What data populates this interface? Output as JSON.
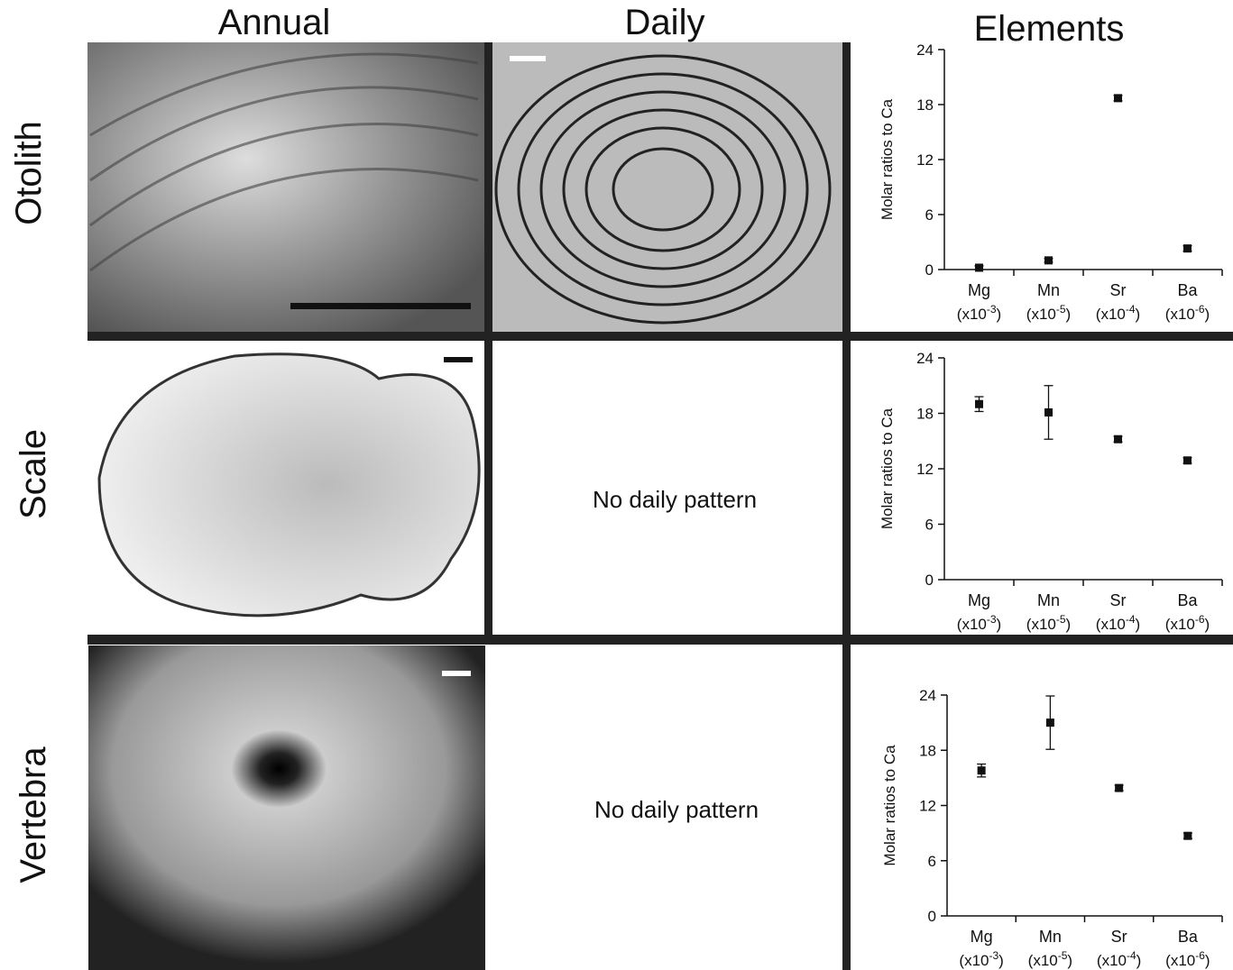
{
  "header": {
    "columns": [
      "Annual",
      "Daily",
      "Elements"
    ],
    "rows": [
      "Otolith",
      "Scale",
      "Vertebra"
    ]
  },
  "daily": {
    "scale": "No daily pattern",
    "vertebra": "No daily pattern"
  },
  "chart_data": [
    {
      "type": "scatter",
      "ylabel": "Molar ratios to Ca",
      "categories": [
        "Mg",
        "Mn",
        "Sr",
        "Ba"
      ],
      "category_units": [
        [
          "(x10",
          "-3",
          ")"
        ],
        [
          "(x10",
          "-5",
          ")"
        ],
        [
          "(x10",
          "-4",
          ")"
        ],
        [
          "(x10",
          "-6",
          ")"
        ]
      ],
      "values": [
        0.2,
        1.0,
        18.7,
        2.3
      ],
      "errors": [
        0.2,
        0.2,
        0.3,
        0.3
      ],
      "color": "#111111",
      "ylim": [
        0,
        24
      ],
      "yticks": [
        0,
        6,
        12,
        18,
        24
      ]
    },
    {
      "type": "scatter",
      "ylabel": "Molar ratios to Ca",
      "categories": [
        "Mg",
        "Mn",
        "Sr",
        "Ba"
      ],
      "category_units": [
        [
          "(x10",
          "-3",
          ")"
        ],
        [
          "(x10",
          "-5",
          ")"
        ],
        [
          "(x10",
          "-4",
          ")"
        ],
        [
          "(x10",
          "-6",
          ")"
        ]
      ],
      "values": [
        19.0,
        18.1,
        15.2,
        12.9
      ],
      "errors": [
        0.8,
        2.9,
        0.3,
        0.3
      ],
      "color": "#111111",
      "ylim": [
        0,
        24
      ],
      "yticks": [
        0,
        6,
        12,
        18,
        24
      ]
    },
    {
      "type": "scatter",
      "ylabel": "Molar ratios to Ca",
      "categories": [
        "Mg",
        "Mn",
        "Sr",
        "Ba"
      ],
      "category_units": [
        [
          "(x10",
          "-3",
          ")"
        ],
        [
          "(x10",
          "-5",
          ")"
        ],
        [
          "(x10",
          "-4",
          ")"
        ],
        [
          "(x10",
          "-6",
          ")"
        ]
      ],
      "values": [
        15.8,
        21.0,
        13.9,
        8.7
      ],
      "errors": [
        0.7,
        2.9,
        0.3,
        0.3
      ],
      "color": "#111111",
      "ylim": [
        0,
        24
      ],
      "yticks": [
        0,
        6,
        12,
        18,
        24
      ]
    }
  ]
}
